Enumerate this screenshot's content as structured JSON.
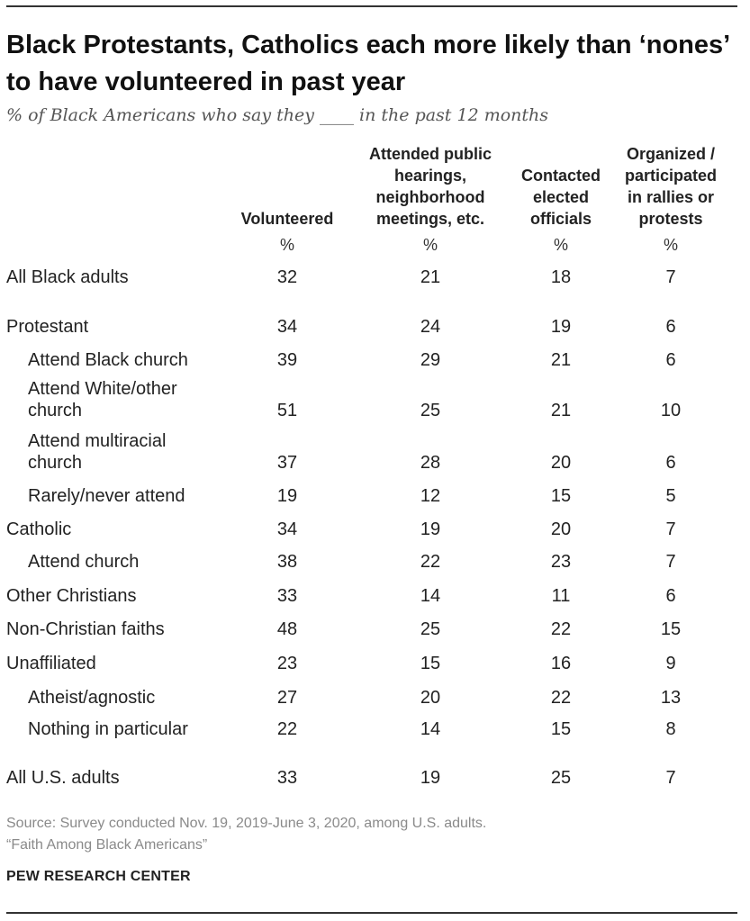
{
  "title": "Black Protestants, Catholics each more likely than ‘nones’ to have volunteered in past year",
  "subtitle": "% of Black Americans who say they ____ in the past 12 months",
  "chart_data": {
    "type": "table",
    "title": "Black Protestants, Catholics each more likely than ‘nones’ to have volunteered in past year",
    "columns": [
      "Volunteered",
      "Attended public hearings, neighborhood meetings, etc.",
      "Contacted elected officials",
      "Organized / participated in rallies or protests"
    ],
    "unit_row": [
      "%",
      "%",
      "%",
      "%"
    ],
    "rows": [
      {
        "label": "All Black adults",
        "indent": false,
        "values": [
          32,
          21,
          18,
          7
        ]
      },
      {
        "label": "Protestant",
        "indent": false,
        "values": [
          34,
          24,
          19,
          6
        ]
      },
      {
        "label": "Attend Black church",
        "indent": true,
        "values": [
          39,
          29,
          21,
          6
        ]
      },
      {
        "label": "Attend White/other church",
        "indent": true,
        "values": [
          51,
          25,
          21,
          10
        ]
      },
      {
        "label": "Attend multiracial church",
        "indent": true,
        "values": [
          37,
          28,
          20,
          6
        ]
      },
      {
        "label": "Rarely/never attend",
        "indent": true,
        "values": [
          19,
          12,
          15,
          5
        ]
      },
      {
        "label": "Catholic",
        "indent": false,
        "values": [
          34,
          19,
          20,
          7
        ]
      },
      {
        "label": "Attend church",
        "indent": true,
        "values": [
          38,
          22,
          23,
          7
        ]
      },
      {
        "label": "Other Christians",
        "indent": false,
        "values": [
          33,
          14,
          11,
          6
        ]
      },
      {
        "label": "Non-Christian faiths",
        "indent": false,
        "values": [
          48,
          25,
          22,
          15
        ]
      },
      {
        "label": "Unaffiliated",
        "indent": false,
        "values": [
          23,
          15,
          16,
          9
        ]
      },
      {
        "label": "Atheist/agnostic",
        "indent": true,
        "values": [
          27,
          20,
          22,
          13
        ]
      },
      {
        "label": "Nothing in particular",
        "indent": true,
        "values": [
          22,
          14,
          15,
          8
        ]
      },
      {
        "label": "All U.S. adults",
        "indent": false,
        "values": [
          33,
          19,
          25,
          7
        ]
      }
    ]
  },
  "source_line1": "Source: Survey conducted Nov. 19, 2019-June 3, 2020, among U.S. adults.",
  "source_line2": "“Faith Among Black Americans”",
  "org": "PEW RESEARCH CENTER"
}
